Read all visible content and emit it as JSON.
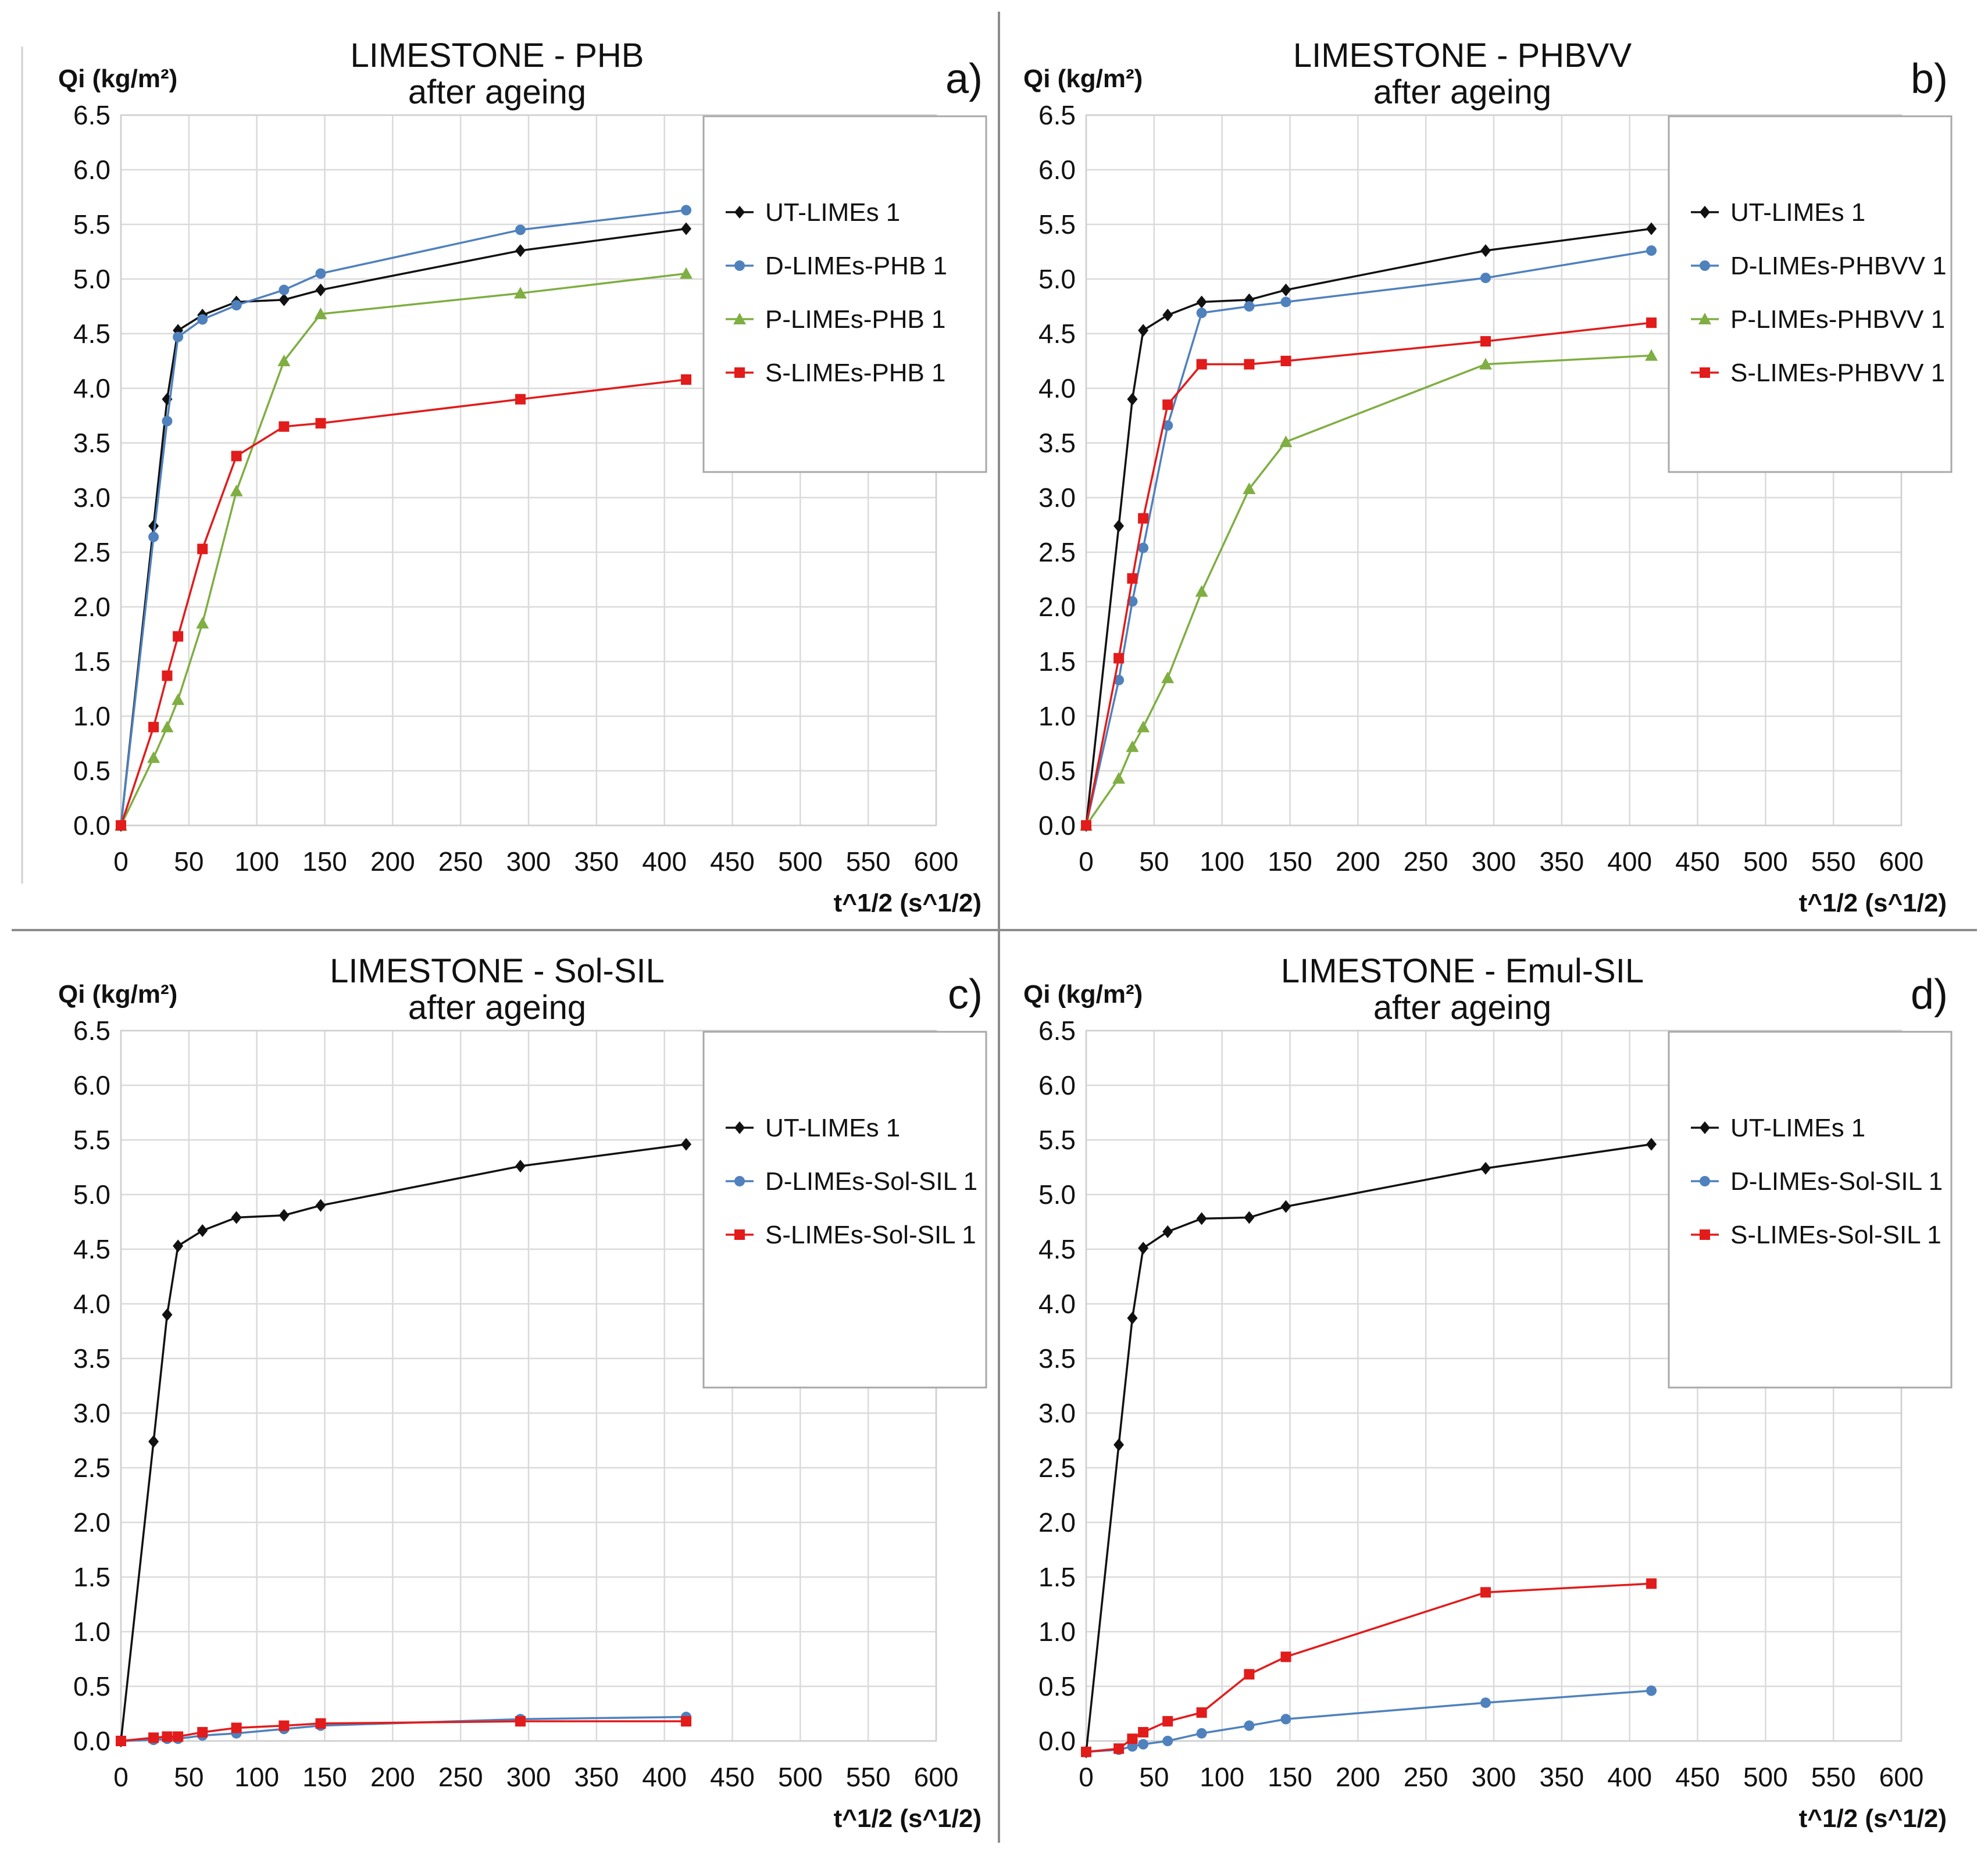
{
  "chart_data": [
    {
      "type": "line",
      "panel": "a)",
      "title": "LIMESTONE - PHB",
      "subtitle": "after ageing",
      "ylabel": "Qi (kg/m²)",
      "xlabel": "t^1/2 (s^1/2)",
      "xlim": [
        0,
        600
      ],
      "ylim": [
        0,
        6.5
      ],
      "x_ticks": [
        "0",
        "50",
        "100",
        "150",
        "200",
        "250",
        "300",
        "350",
        "400",
        "450",
        "500",
        "550",
        "600"
      ],
      "y_ticks": [
        "0.0",
        "0.5",
        "1.0",
        "1.5",
        "2.0",
        "2.5",
        "3.0",
        "3.5",
        "4.0",
        "4.5",
        "5.0",
        "5.5",
        "6.0",
        "6.5"
      ],
      "legend_position": "top-right",
      "series": [
        {
          "name": "UT-LIMEs 1",
          "color": "#111111",
          "marker": "diamond",
          "x": [
            0,
            24,
            34,
            42,
            60,
            85,
            120,
            147,
            294,
            416
          ],
          "y": [
            0,
            2.74,
            3.9,
            4.53,
            4.67,
            4.79,
            4.81,
            4.9,
            5.26,
            5.46
          ]
        },
        {
          "name": "D-LIMEs-PHB 1",
          "color": "#4f81bd",
          "marker": "circle",
          "x": [
            0,
            24,
            34,
            42,
            60,
            85,
            120,
            147,
            294,
            416
          ],
          "y": [
            0,
            2.64,
            3.7,
            4.47,
            4.63,
            4.76,
            4.9,
            5.05,
            5.45,
            5.63
          ]
        },
        {
          "name": "P-LIMEs-PHB 1",
          "color": "#7fae42",
          "marker": "triangle",
          "x": [
            0,
            24,
            34,
            42,
            60,
            85,
            120,
            147,
            294,
            416
          ],
          "y": [
            0,
            0.62,
            0.9,
            1.15,
            1.85,
            3.06,
            4.25,
            4.68,
            4.87,
            5.05
          ]
        },
        {
          "name": "S-LIMEs-PHB 1",
          "color": "#e21b1b",
          "marker": "square",
          "x": [
            0,
            24,
            34,
            42,
            60,
            85,
            120,
            147,
            294,
            416
          ],
          "y": [
            0,
            0.9,
            1.37,
            1.73,
            2.53,
            3.38,
            3.65,
            3.68,
            3.9,
            4.08
          ]
        }
      ]
    },
    {
      "type": "line",
      "panel": "b)",
      "title": "LIMESTONE - PHBVV",
      "subtitle": "after ageing",
      "ylabel": "Qi (kg/m²)",
      "xlabel": "t^1/2 (s^1/2)",
      "xlim": [
        0,
        600
      ],
      "ylim": [
        0,
        6.5
      ],
      "x_ticks": [
        "0",
        "50",
        "100",
        "150",
        "200",
        "250",
        "300",
        "350",
        "400",
        "450",
        "500",
        "550",
        "600"
      ],
      "y_ticks": [
        "0.0",
        "0.5",
        "1.0",
        "1.5",
        "2.0",
        "2.5",
        "3.0",
        "3.5",
        "4.0",
        "4.5",
        "5.0",
        "5.5",
        "6.0",
        "6.5"
      ],
      "legend_position": "top-right",
      "series": [
        {
          "name": "UT-LIMEs 1",
          "color": "#111111",
          "marker": "diamond",
          "x": [
            0,
            24,
            34,
            42,
            60,
            85,
            120,
            147,
            294,
            416
          ],
          "y": [
            0,
            2.74,
            3.9,
            4.53,
            4.67,
            4.79,
            4.81,
            4.9,
            5.26,
            5.46
          ]
        },
        {
          "name": "D-LIMEs-PHBVV 1",
          "color": "#4f81bd",
          "marker": "circle",
          "x": [
            0,
            24,
            34,
            42,
            60,
            85,
            120,
            147,
            294,
            416
          ],
          "y": [
            0,
            1.33,
            2.05,
            2.54,
            3.66,
            4.69,
            4.75,
            4.79,
            5.01,
            5.26
          ]
        },
        {
          "name": "P-LIMEs-PHBVV 1",
          "color": "#7fae42",
          "marker": "triangle",
          "x": [
            0,
            24,
            34,
            42,
            60,
            85,
            120,
            147,
            294,
            416
          ],
          "y": [
            0,
            0.43,
            0.72,
            0.9,
            1.35,
            2.14,
            3.08,
            3.51,
            4.22,
            4.3
          ]
        },
        {
          "name": "S-LIMEs-PHBVV 1",
          "color": "#e21b1b",
          "marker": "square",
          "x": [
            0,
            24,
            34,
            42,
            60,
            85,
            120,
            147,
            294,
            416
          ],
          "y": [
            0,
            1.53,
            2.26,
            2.81,
            3.85,
            4.22,
            4.22,
            4.25,
            4.43,
            4.6
          ]
        }
      ]
    },
    {
      "type": "line",
      "panel": "c)",
      "title": "LIMESTONE - Sol-SIL",
      "subtitle": "after ageing",
      "ylabel": "Qi (kg/m²)",
      "xlabel": "t^1/2 (s^1/2)",
      "xlim": [
        0,
        600
      ],
      "ylim": [
        0,
        6.5
      ],
      "x_ticks": [
        "0",
        "50",
        "100",
        "150",
        "200",
        "250",
        "300",
        "350",
        "400",
        "450",
        "500",
        "550",
        "600"
      ],
      "y_ticks": [
        "0.0",
        "0.5",
        "1.0",
        "1.5",
        "2.0",
        "2.5",
        "3.0",
        "3.5",
        "4.0",
        "4.5",
        "5.0",
        "5.5",
        "6.0",
        "6.5"
      ],
      "legend_position": "top-right",
      "series": [
        {
          "name": "UT-LIMEs 1",
          "color": "#111111",
          "marker": "diamond",
          "x": [
            0,
            24,
            34,
            42,
            60,
            85,
            120,
            147,
            294,
            416
          ],
          "y": [
            0,
            2.74,
            3.9,
            4.53,
            4.67,
            4.79,
            4.81,
            4.9,
            5.26,
            5.46
          ]
        },
        {
          "name": "D-LIMEs-Sol-SIL 1",
          "color": "#4f81bd",
          "marker": "circle",
          "x": [
            0,
            24,
            34,
            42,
            60,
            85,
            120,
            147,
            294,
            416
          ],
          "y": [
            0,
            0.01,
            0.02,
            0.02,
            0.05,
            0.07,
            0.11,
            0.14,
            0.2,
            0.22
          ]
        },
        {
          "name": "S-LIMEs-Sol-SIL 1",
          "color": "#e21b1b",
          "marker": "square",
          "x": [
            0,
            24,
            34,
            42,
            60,
            85,
            120,
            147,
            294,
            416
          ],
          "y": [
            0,
            0.03,
            0.04,
            0.04,
            0.08,
            0.12,
            0.14,
            0.16,
            0.18,
            0.18
          ]
        }
      ]
    },
    {
      "type": "line",
      "panel": "d)",
      "title": "LIMESTONE - Emul-SIL",
      "subtitle": "after ageing",
      "ylabel": "Qi (kg/m²)",
      "xlabel": "t^1/2 (s^1/2)",
      "xlim": [
        0,
        600
      ],
      "ylim": [
        0,
        6.5
      ],
      "x_ticks": [
        "0",
        "50",
        "100",
        "150",
        "200",
        "250",
        "300",
        "350",
        "400",
        "450",
        "500",
        "550",
        "600"
      ],
      "y_ticks": [
        "0.0",
        "0.5",
        "1.0",
        "1.5",
        "2.0",
        "2.5",
        "3.0",
        "3.5",
        "4.0",
        "4.5",
        "5.0",
        "5.5",
        "6.0",
        "6.5"
      ],
      "legend_position": "top-right",
      "series": [
        {
          "name": "UT-LIMEs 1",
          "color": "#111111",
          "marker": "diamond",
          "x": [
            0,
            24,
            34,
            42,
            60,
            85,
            120,
            147,
            294,
            416
          ],
          "y": [
            -0.1,
            2.71,
            3.87,
            4.51,
            4.66,
            4.78,
            4.79,
            4.89,
            5.24,
            5.46
          ]
        },
        {
          "name": "D-LIMEs-Sol-SIL 1",
          "color": "#4f81bd",
          "marker": "circle",
          "x": [
            0,
            24,
            34,
            42,
            60,
            85,
            120,
            147,
            294,
            416
          ],
          "y": [
            -0.1,
            -0.08,
            -0.05,
            -0.03,
            0.0,
            0.07,
            0.14,
            0.2,
            0.35,
            0.46
          ]
        },
        {
          "name": "S-LIMEs-Sol-SIL 1",
          "color": "#e21b1b",
          "marker": "square",
          "x": [
            0,
            24,
            34,
            42,
            60,
            85,
            120,
            147,
            294,
            416
          ],
          "y": [
            -0.1,
            -0.07,
            0.02,
            0.08,
            0.18,
            0.26,
            0.61,
            0.77,
            1.36,
            1.44
          ]
        }
      ]
    }
  ]
}
